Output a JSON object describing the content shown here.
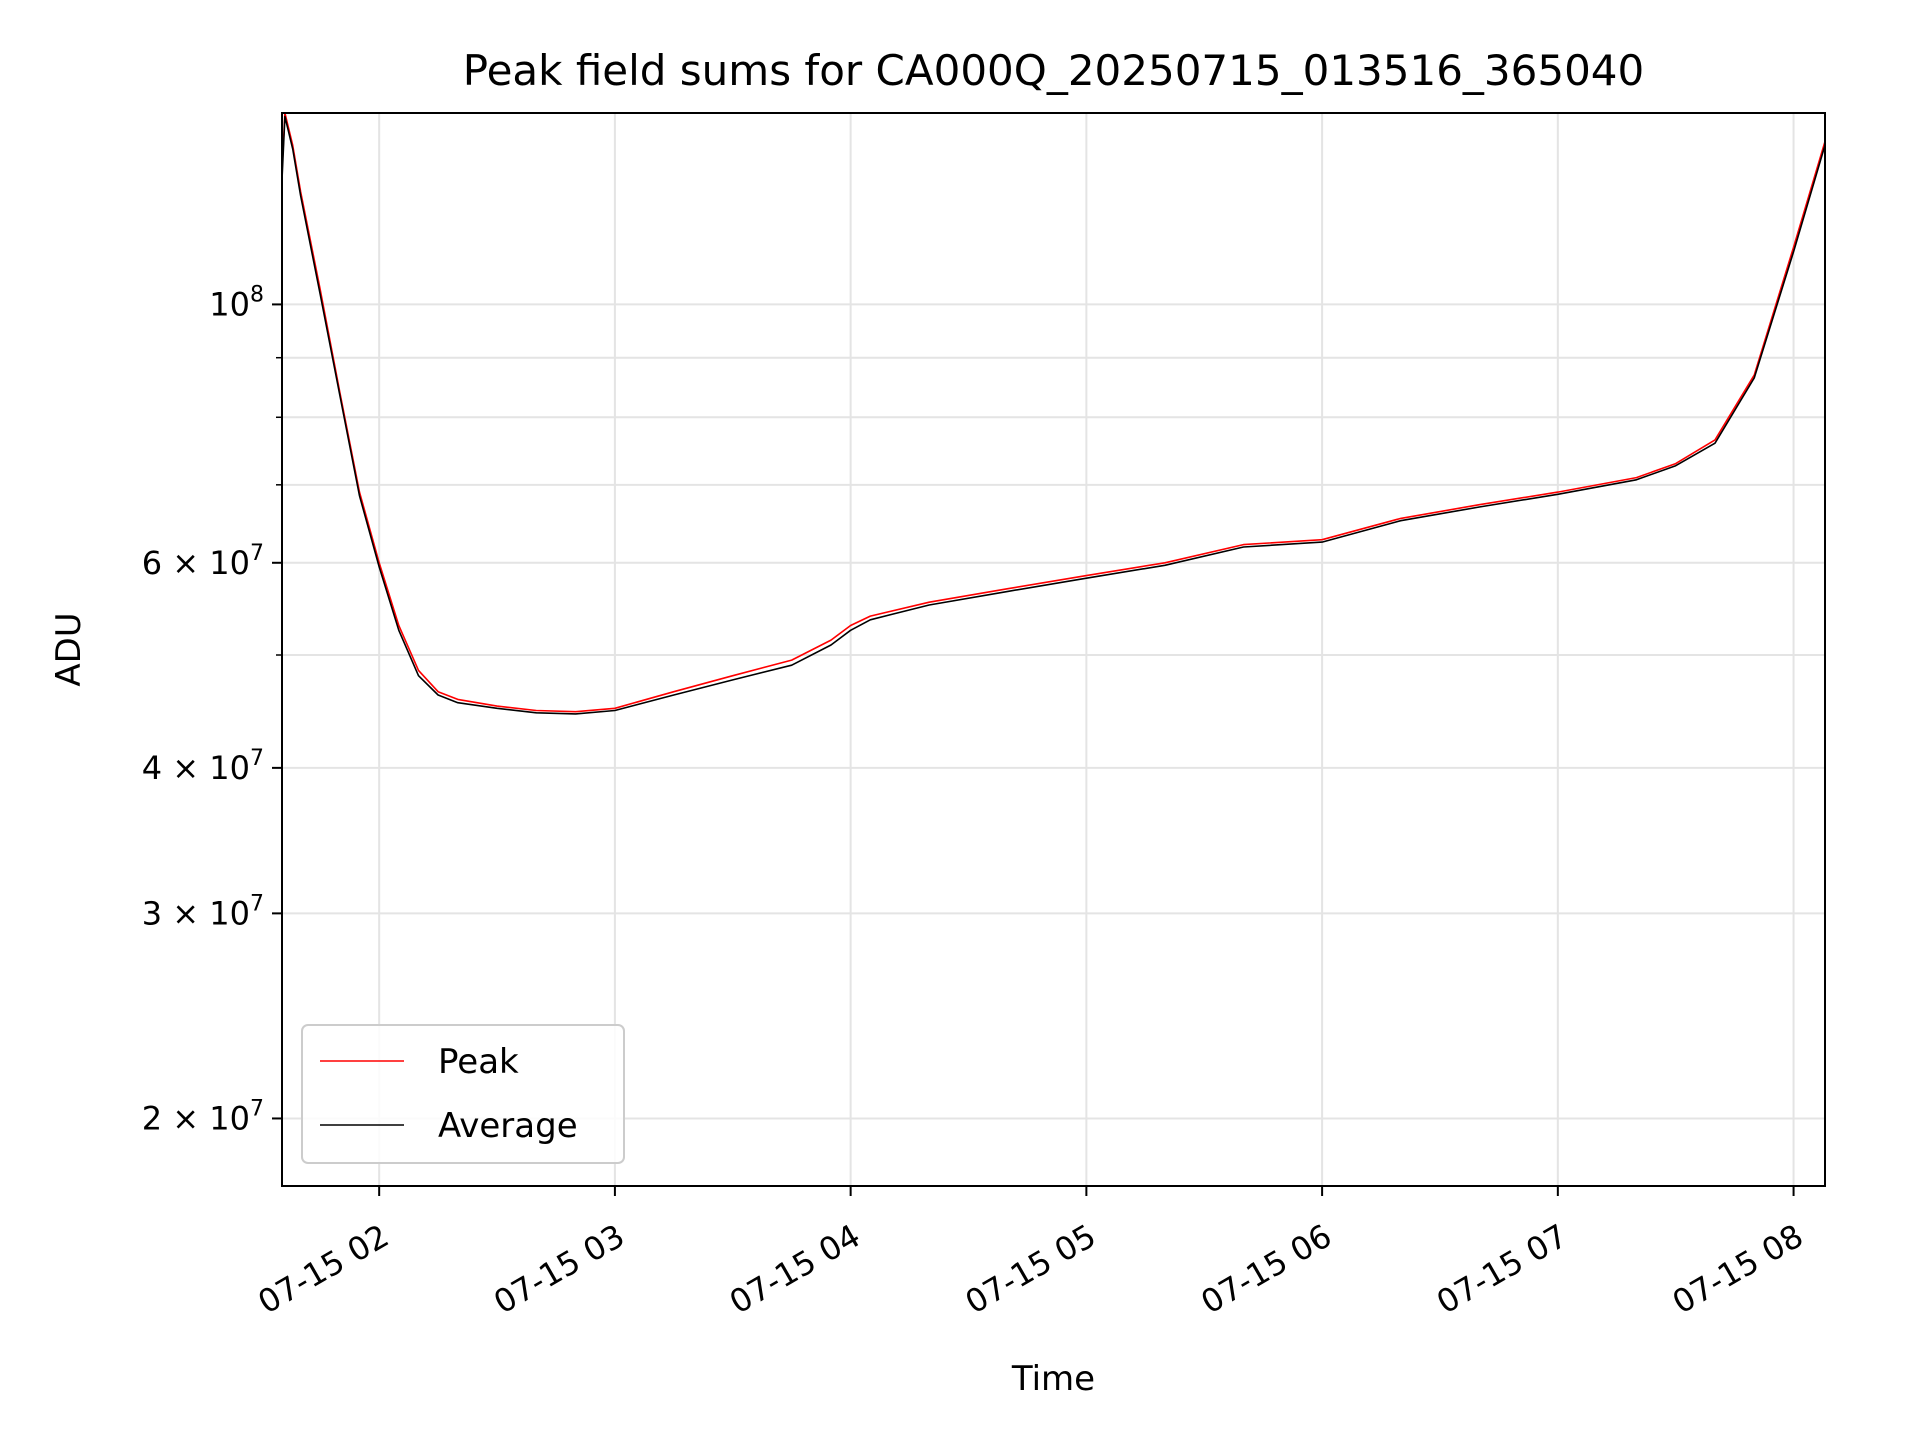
{
  "chart_data": {
    "type": "line",
    "title": "Peak field sums for CA000Q_20250715_013516_365040",
    "xlabel": "Time",
    "ylabel": "ADU",
    "yscale": "log",
    "xlim": [
      "2025-07-15T01:35:16",
      "2025-07-15T08:08:00"
    ],
    "ylim": [
      17500000,
      146000000
    ],
    "grid": true,
    "legend_position": "lower-left",
    "x_ticks": [
      {
        "value": "2025-07-15T02:00:00",
        "label": "07-15 02"
      },
      {
        "value": "2025-07-15T03:00:00",
        "label": "07-15 03"
      },
      {
        "value": "2025-07-15T04:00:00",
        "label": "07-15 04"
      },
      {
        "value": "2025-07-15T05:00:00",
        "label": "07-15 05"
      },
      {
        "value": "2025-07-15T06:00:00",
        "label": "07-15 06"
      },
      {
        "value": "2025-07-15T07:00:00",
        "label": "07-15 07"
      },
      {
        "value": "2025-07-15T08:00:00",
        "label": "07-15 08"
      }
    ],
    "y_ticks": [
      {
        "value": 20000000,
        "mantissa": "2",
        "exponent": "7"
      },
      {
        "value": 30000000,
        "mantissa": "3",
        "exponent": "7"
      },
      {
        "value": 40000000,
        "mantissa": "4",
        "exponent": "7"
      },
      {
        "value": 60000000,
        "mantissa": "6",
        "exponent": "7"
      },
      {
        "value": 100000000,
        "mantissa": "",
        "exponent": "8"
      }
    ],
    "y_minor_grid": [
      50000000,
      70000000,
      80000000,
      90000000
    ],
    "series": [
      {
        "name": "Peak",
        "color": "#ff0000",
        "x": [
          "2025-07-15T01:35:16",
          "2025-07-15T01:36:00",
          "2025-07-15T01:38:00",
          "2025-07-15T01:40:00",
          "2025-07-15T01:45:00",
          "2025-07-15T01:50:00",
          "2025-07-15T01:55:00",
          "2025-07-15T02:00:00",
          "2025-07-15T02:05:00",
          "2025-07-15T02:10:00",
          "2025-07-15T02:15:00",
          "2025-07-15T02:20:00",
          "2025-07-15T02:30:00",
          "2025-07-15T02:40:00",
          "2025-07-15T02:50:00",
          "2025-07-15T03:00:00",
          "2025-07-15T03:15:00",
          "2025-07-15T03:30:00",
          "2025-07-15T03:45:00",
          "2025-07-15T03:55:00",
          "2025-07-15T04:00:00",
          "2025-07-15T04:05:00",
          "2025-07-15T04:20:00",
          "2025-07-15T04:40:00",
          "2025-07-15T05:00:00",
          "2025-07-15T05:20:00",
          "2025-07-15T05:40:00",
          "2025-07-15T06:00:00",
          "2025-07-15T06:20:00",
          "2025-07-15T06:40:00",
          "2025-07-15T07:00:00",
          "2025-07-15T07:20:00",
          "2025-07-15T07:30:00",
          "2025-07-15T07:40:00",
          "2025-07-15T07:50:00",
          "2025-07-15T08:00:00",
          "2025-07-15T08:08:00"
        ],
        "y": [
          130000000,
          146000000,
          137000000,
          125000000,
          103000000,
          84000000,
          69000000,
          60000000,
          53000000,
          48500000,
          46500000,
          45800000,
          45200000,
          44800000,
          44700000,
          45000000,
          46500000,
          48000000,
          49500000,
          51500000,
          53000000,
          54000000,
          55500000,
          57000000,
          58500000,
          60000000,
          62200000,
          62800000,
          65500000,
          67300000,
          69000000,
          71000000,
          73000000,
          76500000,
          87000000,
          112000000,
          138000000
        ]
      },
      {
        "name": "Average",
        "color": "#000000",
        "x": [
          "2025-07-15T01:35:16",
          "2025-07-15T01:36:00",
          "2025-07-15T01:38:00",
          "2025-07-15T01:40:00",
          "2025-07-15T01:45:00",
          "2025-07-15T01:50:00",
          "2025-07-15T01:55:00",
          "2025-07-15T02:00:00",
          "2025-07-15T02:05:00",
          "2025-07-15T02:10:00",
          "2025-07-15T02:15:00",
          "2025-07-15T02:20:00",
          "2025-07-15T02:30:00",
          "2025-07-15T02:40:00",
          "2025-07-15T02:50:00",
          "2025-07-15T03:00:00",
          "2025-07-15T03:15:00",
          "2025-07-15T03:30:00",
          "2025-07-15T03:45:00",
          "2025-07-15T03:55:00",
          "2025-07-15T04:00:00",
          "2025-07-15T04:05:00",
          "2025-07-15T04:20:00",
          "2025-07-15T04:40:00",
          "2025-07-15T05:00:00",
          "2025-07-15T05:20:00",
          "2025-07-15T05:40:00",
          "2025-07-15T06:00:00",
          "2025-07-15T06:20:00",
          "2025-07-15T06:40:00",
          "2025-07-15T07:00:00",
          "2025-07-15T07:20:00",
          "2025-07-15T07:30:00",
          "2025-07-15T07:40:00",
          "2025-07-15T07:50:00",
          "2025-07-15T08:00:00",
          "2025-07-15T08:08:00"
        ],
        "y": [
          128000000,
          145000000,
          136000000,
          124000000,
          102000000,
          83500000,
          68500000,
          59500000,
          52500000,
          48000000,
          46200000,
          45500000,
          45000000,
          44600000,
          44500000,
          44800000,
          46200000,
          47600000,
          49000000,
          51000000,
          52500000,
          53600000,
          55200000,
          56700000,
          58200000,
          59700000,
          61900000,
          62500000,
          65200000,
          67000000,
          68700000,
          70700000,
          72700000,
          76000000,
          86500000,
          111000000,
          137000000
        ]
      }
    ]
  }
}
